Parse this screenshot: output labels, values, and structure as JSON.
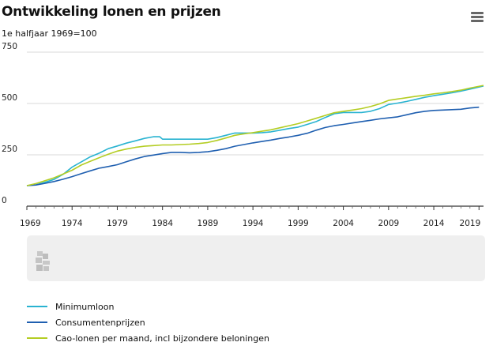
{
  "header": {
    "title": "Ontwikkeling lonen en prijzen",
    "subtitle": "1e halfjaar 1969=100"
  },
  "menu": {
    "icon": "hamburger-menu-icon"
  },
  "footer": {
    "logo_icon": "cbs-logo-icon"
  },
  "chart_data": {
    "type": "line",
    "title": "Ontwikkeling lonen en prijzen",
    "subtitle": "1e halfjaar 1969=100",
    "xlabel": "",
    "ylabel": "",
    "xlim": [
      1969,
      2019.5
    ],
    "ylim": [
      0,
      750
    ],
    "y_ticks": [
      0,
      250,
      500,
      750
    ],
    "x_ticks": [
      "1969",
      "1974",
      "1979",
      "1984",
      "1989",
      "1994",
      "1999",
      "2004",
      "2009",
      "2014",
      "2019"
    ],
    "grid": true,
    "legend_position": "bottom",
    "series": [
      {
        "name": "Minimumloon",
        "color": "#29b3d1",
        "x": [
          1969,
          1970,
          1971,
          1972,
          1973,
          1974,
          1975,
          1976,
          1977,
          1978,
          1979,
          1980,
          1981,
          1982,
          1983,
          1983.7,
          1984,
          1985,
          1986,
          1987,
          1988,
          1989,
          1990,
          1991,
          1992,
          1993,
          1994,
          1995,
          1996,
          1997,
          1998,
          1999,
          2000,
          2001,
          2002,
          2003,
          2004,
          2005,
          2006,
          2007,
          2008,
          2009,
          2010,
          2011,
          2012,
          2013,
          2014,
          2015,
          2016,
          2017,
          2018,
          2019.5
        ],
        "values": [
          100,
          104,
          116,
          130,
          155,
          190,
          215,
          240,
          258,
          280,
          293,
          307,
          318,
          330,
          338,
          338,
          326,
          326,
          326,
          326,
          326,
          326,
          334,
          345,
          356,
          356,
          356,
          358,
          362,
          370,
          378,
          385,
          398,
          412,
          432,
          450,
          456,
          456,
          456,
          462,
          475,
          495,
          502,
          510,
          520,
          530,
          538,
          545,
          552,
          560,
          570,
          585
        ]
      },
      {
        "name": "Consumentenprijzen",
        "color": "#1f5fb0",
        "x": [
          1969,
          1970,
          1971,
          1972,
          1973,
          1974,
          1975,
          1976,
          1977,
          1978,
          1979,
          1980,
          1981,
          1982,
          1983,
          1984,
          1985,
          1986,
          1987,
          1988,
          1989,
          1990,
          1991,
          1992,
          1993,
          1994,
          1995,
          1996,
          1997,
          1998,
          1999,
          2000,
          2001,
          2002,
          2003,
          2004,
          2005,
          2006,
          2007,
          2008,
          2009,
          2010,
          2011,
          2012,
          2013,
          2014,
          2015,
          2016,
          2017,
          2018,
          2019
        ],
        "values": [
          100,
          103,
          111,
          120,
          131,
          144,
          158,
          172,
          185,
          193,
          202,
          216,
          230,
          242,
          249,
          256,
          262,
          262,
          260,
          262,
          265,
          272,
          280,
          292,
          300,
          308,
          315,
          322,
          330,
          337,
          345,
          355,
          370,
          383,
          392,
          398,
          405,
          412,
          418,
          425,
          430,
          435,
          445,
          455,
          462,
          466,
          468,
          470,
          472,
          478,
          482
        ]
      },
      {
        "name": "Cao-lonen per maand, incl bijzondere beloningen",
        "color": "#b4cd23",
        "x": [
          1969,
          1970,
          1971,
          1972,
          1973,
          1974,
          1975,
          1976,
          1977,
          1978,
          1979,
          1980,
          1981,
          1982,
          1983,
          1984,
          1985,
          1986,
          1987,
          1988,
          1989,
          1990,
          1991,
          1992,
          1993,
          1994,
          1995,
          1996,
          1997,
          1998,
          1999,
          2000,
          2001,
          2002,
          2003,
          2004,
          2005,
          2006,
          2007,
          2008,
          2009,
          2010,
          2011,
          2012,
          2013,
          2014,
          2015,
          2016,
          2017,
          2018,
          2019.5
        ],
        "values": [
          100,
          110,
          124,
          138,
          156,
          175,
          200,
          218,
          236,
          253,
          268,
          278,
          286,
          292,
          295,
          298,
          298,
          300,
          302,
          305,
          310,
          320,
          332,
          345,
          352,
          358,
          365,
          372,
          382,
          392,
          402,
          415,
          428,
          442,
          455,
          462,
          468,
          475,
          485,
          498,
          515,
          522,
          528,
          535,
          540,
          547,
          552,
          558,
          565,
          575,
          588
        ]
      }
    ]
  }
}
